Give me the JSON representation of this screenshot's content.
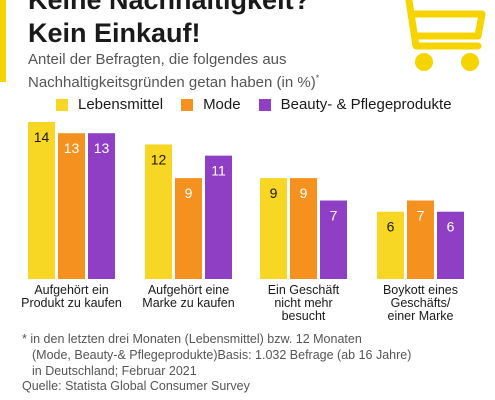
{
  "header": {
    "title_line1": "Keine Nachhaltigkeit?",
    "title_line2": "Kein Einkauf!",
    "subtitle": "Anteil der Befragten, die folgendes aus Nachhaltigkeitsgründen getan haben (in %)",
    "subtitle_mark": "*"
  },
  "colors": {
    "accent": "#f5d400",
    "lebensmittel": "#f7d724",
    "mode": "#f5921f",
    "beauty": "#8e3fc4",
    "cart": "#f5d400"
  },
  "icons": [
    "shopping-cart-icon"
  ],
  "chart_data": {
    "type": "bar",
    "categories": [
      [
        "Aufgehört ein",
        "Produkt zu kaufen"
      ],
      [
        "Aufgehört eine",
        "Marke zu kaufen"
      ],
      [
        "Ein Geschäft",
        "nicht mehr",
        "besucht"
      ],
      [
        "Boykott eines",
        "Geschäfts/",
        "einer Marke"
      ]
    ],
    "series": [
      {
        "name": "Lebensmittel",
        "values": [
          14,
          12,
          9,
          6
        ]
      },
      {
        "name": "Mode",
        "values": [
          13,
          9,
          9,
          7
        ]
      },
      {
        "name": "Beauty- & Pflegeprodukte",
        "values": [
          13,
          11,
          7,
          6
        ]
      }
    ],
    "ylim": [
      0,
      14
    ],
    "grid": false,
    "legend": "top"
  },
  "footnote": {
    "line1": "* in den letzten drei Monaten (Lebensmittel) bzw. 12 Monaten",
    "line2": "(Mode, Beauty-& Pflegeprodukte)Basis: 1.032 Befrage (ab 16 Jahre)",
    "line3": "in Deutschland; Februar 2021"
  },
  "source": "Quelle: Statista Global Consumer Survey"
}
